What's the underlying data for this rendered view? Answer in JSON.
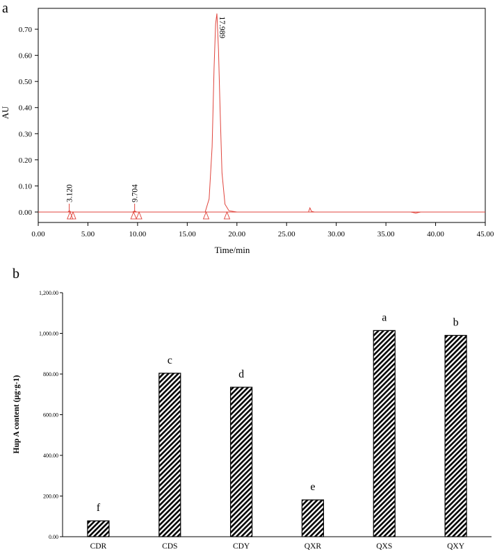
{
  "chart_data": [
    {
      "type": "line",
      "panel_label": "a",
      "title": "",
      "xlabel": "Time/min",
      "ylabel": "AU",
      "xlim": [
        0,
        45
      ],
      "ylim": [
        -0.04,
        0.78
      ],
      "x_ticks": [
        "0.00",
        "5.00",
        "10.00",
        "15.00",
        "20.00",
        "25.00",
        "30.00",
        "35.00",
        "40.00",
        "45.00"
      ],
      "x_tick_values": [
        0,
        5,
        10,
        15,
        20,
        25,
        30,
        35,
        40,
        45
      ],
      "y_ticks": [
        "0.00",
        "0.10",
        "0.20",
        "0.30",
        "0.40",
        "0.50",
        "0.60",
        "0.70"
      ],
      "y_tick_values": [
        0,
        0.1,
        0.2,
        0.3,
        0.4,
        0.5,
        0.6,
        0.7
      ],
      "series": [
        {
          "name": "chromatogram",
          "color": "#e0443c",
          "x": [
            0,
            3,
            3.12,
            3.3,
            9.5,
            9.7,
            9.9,
            16.8,
            17.2,
            17.5,
            17.7,
            17.85,
            17.989,
            18.15,
            18.3,
            18.5,
            18.8,
            19.2,
            20,
            27.2,
            27.35,
            27.5,
            27.8,
            30,
            35,
            37.5,
            38,
            38.5,
            40,
            45
          ],
          "y": [
            0,
            0,
            0.005,
            0,
            0,
            0.004,
            0,
            0,
            0.05,
            0.25,
            0.55,
            0.72,
            0.76,
            0.62,
            0.4,
            0.15,
            0.03,
            0.005,
            0,
            0,
            0.016,
            0.003,
            0,
            0,
            0,
            0,
            -0.004,
            0,
            0,
            0
          ]
        }
      ],
      "peaks": [
        {
          "label": "3.120",
          "rt": 3.12
        },
        {
          "label": "9.704",
          "rt": 9.704
        },
        {
          "label": "17.989",
          "rt": 17.989
        }
      ],
      "integration_marks": [
        3.2,
        3.5,
        9.6,
        10.15,
        16.9,
        19.0
      ]
    },
    {
      "type": "bar",
      "panel_label": "b",
      "title": "",
      "xlabel": "",
      "ylabel": "Hup A content (μg·g-1)",
      "ylim": [
        0,
        1200
      ],
      "y_ticks": [
        "0.00",
        "200.00",
        "400.00",
        "600.00",
        "800.00",
        "1,000.00",
        "1,200.00"
      ],
      "y_tick_values": [
        0,
        200,
        400,
        600,
        800,
        1000,
        1200
      ],
      "categories": [
        "CDR",
        "CDS",
        "CDY",
        "QXR",
        "QXS",
        "QXY"
      ],
      "values": [
        78,
        804,
        735,
        181,
        1014,
        990
      ],
      "significance": [
        "f",
        "c",
        "d",
        "e",
        "a",
        "b"
      ]
    }
  ]
}
